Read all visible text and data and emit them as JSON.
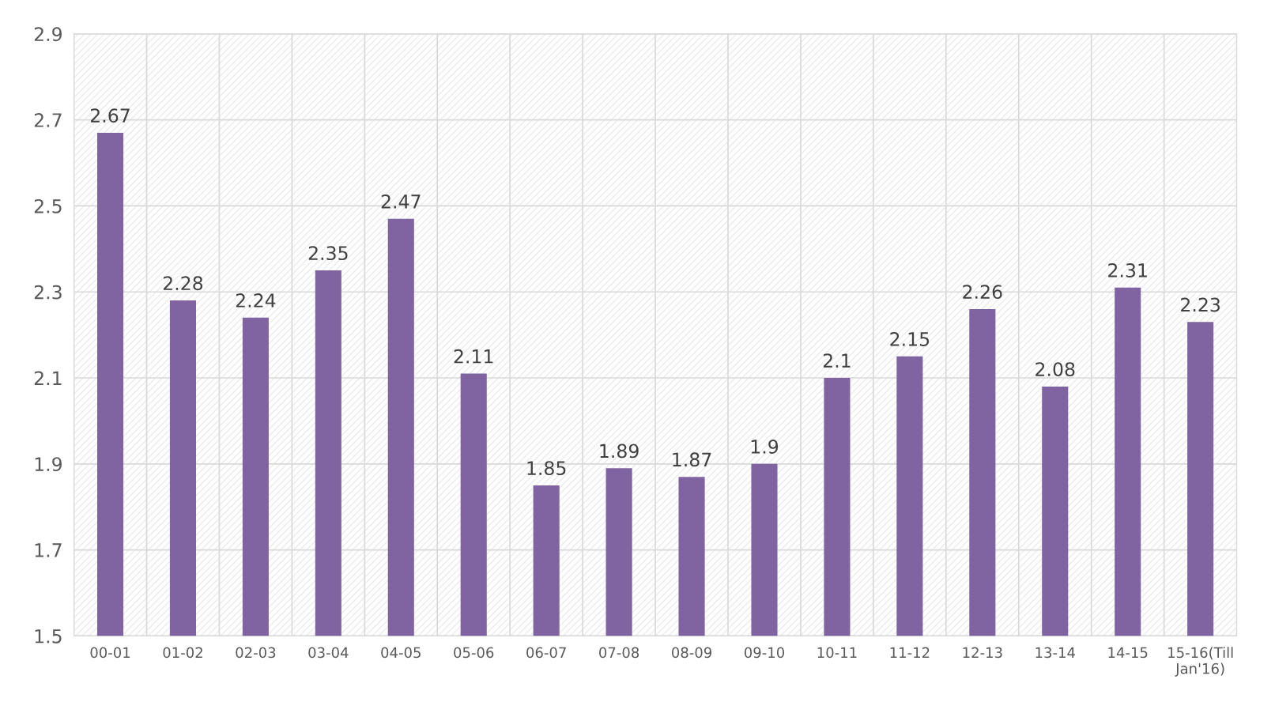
{
  "chart_data": {
    "type": "bar",
    "categories": [
      "00-01",
      "01-02",
      "02-03",
      "03-04",
      "04-05",
      "05-06",
      "06-07",
      "07-08",
      "08-09",
      "09-10",
      "10-11",
      "11-12",
      "12-13",
      "13-14",
      "14-15",
      "15-16(Till\nJan'16)"
    ],
    "values": [
      2.67,
      2.28,
      2.24,
      2.35,
      2.47,
      2.11,
      1.85,
      1.89,
      1.87,
      1.9,
      2.1,
      2.15,
      2.26,
      2.08,
      2.31,
      2.23
    ],
    "color": "#8064a2",
    "ylim": [
      1.5,
      2.9
    ],
    "yticks": [
      1.5,
      1.7,
      1.9,
      2.1,
      2.3,
      2.5,
      2.7,
      2.9
    ],
    "grid": true,
    "data_labels": true
  }
}
